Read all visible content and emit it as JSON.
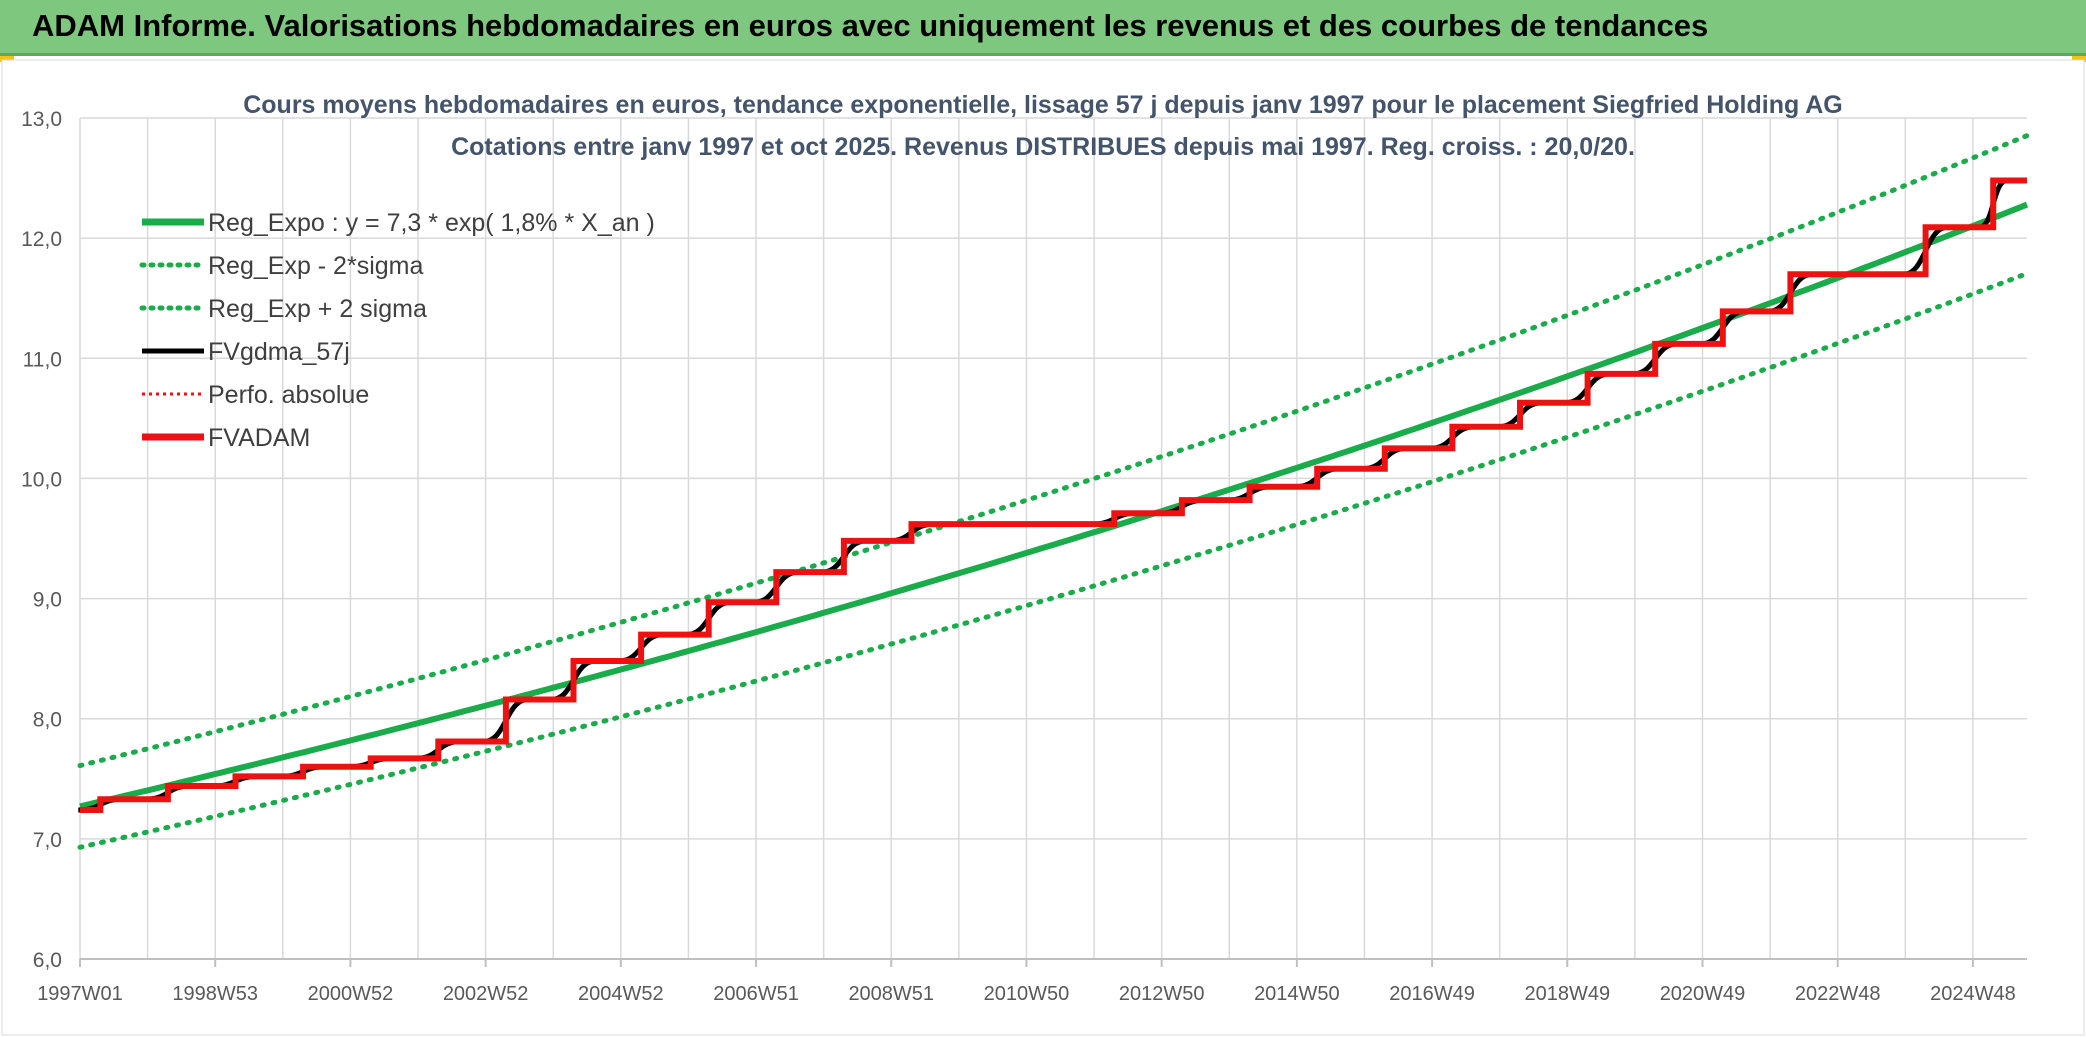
{
  "header": {
    "title": "ADAM Informe. Valorisations hebdomadaires en euros avec uniquement les revenus et des courbes de tendances"
  },
  "colors": {
    "header_bg": "#7dc77e",
    "trend_green": "#1aab4b",
    "fv_black": "#000000",
    "fvadam_red": "#ee1111",
    "grid": "#d9d9d9"
  },
  "chart_data": {
    "type": "line",
    "title_line1": "Cours moyens hebdomadaires en euros, tendance exponentielle, lissage 57 j depuis janv 1997 pour le placement Siegfried Holding AG",
    "title_line2": "Cotations entre janv 1997 et oct 2025. Revenus DISTRIBUES depuis mai 1997. Reg. croiss. : 20,0/20.",
    "x_start": 1997.0,
    "x_end": 2025.8,
    "x_tick_labels": [
      "1997W01",
      "1998W53",
      "2000W52",
      "2002W52",
      "2004W52",
      "2006W51",
      "2008W51",
      "2010W50",
      "2012W50",
      "2014W50",
      "2016W49",
      "2018W49",
      "2020W49",
      "2022W48",
      "2024W48"
    ],
    "x_tick_positions": [
      1997.0,
      1999.0,
      2001.0,
      2003.0,
      2005.0,
      2007.0,
      2009.0,
      2011.0,
      2013.0,
      2015.0,
      2017.0,
      2019.0,
      2021.0,
      2023.0,
      2025.0
    ],
    "ylim": [
      6.0,
      13.0
    ],
    "y_ticks": [
      "6,0",
      "7,0",
      "8,0",
      "9,0",
      "10,0",
      "11,0",
      "12,0",
      "13,0"
    ],
    "grid": true,
    "legend_position": "top-left",
    "regression": {
      "name": "Reg_Expo : y = 7,3 * exp( 1,8% *  X_an )",
      "a": 7.27,
      "growth_rate": 0.0182,
      "upper_name": "Reg_Exp + 2 sigma",
      "lower_name": "Reg_Exp - 2*sigma",
      "upper_offset_at_start": 0.34,
      "lower_offset_at_start": -0.34
    },
    "series_names": {
      "fvgdma": "FVgdma_57j",
      "perfo": "Perfo. absolue",
      "fvadam": "FVADAM"
    },
    "fvadam_steps": [
      {
        "year": 1997.0,
        "value": 7.24
      },
      {
        "year": 1997.3,
        "value": 7.33
      },
      {
        "year": 1998.3,
        "value": 7.44
      },
      {
        "year": 1999.3,
        "value": 7.52
      },
      {
        "year": 2000.3,
        "value": 7.6
      },
      {
        "year": 2001.3,
        "value": 7.67
      },
      {
        "year": 2002.3,
        "value": 7.81
      },
      {
        "year": 2003.3,
        "value": 8.16
      },
      {
        "year": 2004.3,
        "value": 8.48
      },
      {
        "year": 2005.3,
        "value": 8.7
      },
      {
        "year": 2006.3,
        "value": 8.97
      },
      {
        "year": 2007.3,
        "value": 9.22
      },
      {
        "year": 2008.3,
        "value": 9.48
      },
      {
        "year": 2009.3,
        "value": 9.62
      },
      {
        "year": 2012.3,
        "value": 9.71
      },
      {
        "year": 2013.3,
        "value": 9.82
      },
      {
        "year": 2014.3,
        "value": 9.93
      },
      {
        "year": 2015.3,
        "value": 10.08
      },
      {
        "year": 2016.3,
        "value": 10.25
      },
      {
        "year": 2017.3,
        "value": 10.43
      },
      {
        "year": 2018.3,
        "value": 10.63
      },
      {
        "year": 2019.3,
        "value": 10.87
      },
      {
        "year": 2020.3,
        "value": 11.12
      },
      {
        "year": 2021.3,
        "value": 11.39
      },
      {
        "year": 2022.3,
        "value": 11.7
      },
      {
        "year": 2024.3,
        "value": 12.09
      },
      {
        "year": 2025.3,
        "value": 12.48
      }
    ]
  }
}
